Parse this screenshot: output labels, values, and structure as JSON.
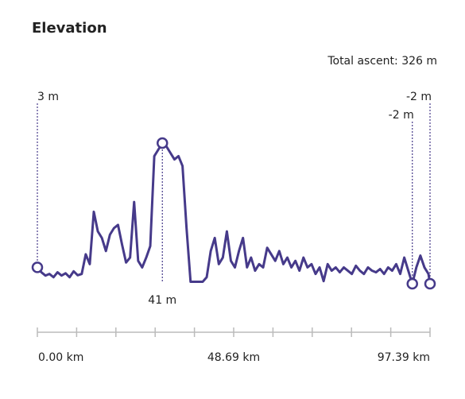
{
  "chart_data": {
    "type": "line",
    "title": "Elevation",
    "subtitle": "Total ascent: 326 m",
    "color": "#463a8a",
    "x": [
      0,
      1,
      2,
      3,
      4,
      5,
      6,
      7,
      8,
      9,
      10,
      11,
      12,
      13,
      14,
      15,
      16,
      17,
      18,
      19,
      20,
      21,
      22,
      23,
      24,
      25,
      26,
      27,
      28,
      29,
      30,
      31,
      32,
      33,
      34,
      35,
      36,
      37,
      38,
      39,
      40,
      41,
      42,
      43,
      44,
      45,
      46,
      47,
      48,
      49,
      50,
      51,
      52,
      53,
      54,
      55,
      56,
      57,
      58,
      59,
      60,
      61,
      62,
      63,
      64,
      65,
      66,
      67,
      68,
      69,
      70,
      71,
      72,
      73,
      74,
      75,
      76,
      77,
      78,
      79,
      80,
      81,
      82,
      83,
      84,
      85,
      86,
      87,
      88,
      89,
      90,
      91,
      92,
      93,
      94,
      95,
      96,
      97,
      97.39
    ],
    "values": [
      3,
      1.5,
      0.5,
      1,
      0,
      1.5,
      0.5,
      1.2,
      0,
      1.8,
      0.6,
      1,
      7,
      4,
      20,
      14,
      12,
      8,
      13,
      15,
      16,
      10,
      4.5,
      6,
      23,
      5,
      3,
      6,
      9.5,
      37,
      39,
      41,
      40,
      38,
      36,
      37,
      34,
      15,
      -1.4,
      -1.4,
      -1.4,
      -1.4,
      0,
      8,
      12,
      4,
      6,
      14,
      5,
      3,
      8,
      12,
      3,
      6,
      2,
      4,
      3,
      9,
      7,
      5,
      8,
      4,
      6,
      3,
      5,
      2,
      6,
      3,
      4,
      1,
      3,
      -1.2,
      4,
      2,
      3,
      1.5,
      3,
      2,
      1,
      3.5,
      2,
      1,
      3,
      2,
      1.5,
      2.5,
      1,
      3,
      2,
      4,
      1,
      6,
      2,
      -2,
      3,
      6.6,
      3,
      1,
      -2
    ],
    "xlim": [
      0,
      97.39
    ],
    "ylim": [
      -2,
      41
    ],
    "xticks": [
      {
        "value": 0,
        "label": "0.00 km"
      },
      {
        "value": 48.69,
        "label": "48.69 km"
      },
      {
        "value": 97.39,
        "label": "97.39 km"
      }
    ],
    "xminorticks": [
      9.739,
      19.478,
      29.217,
      38.956,
      58.434,
      68.173,
      77.912,
      87.651
    ],
    "markers": [
      {
        "x": 0,
        "y": 3,
        "label": "3 m"
      },
      {
        "x": 31,
        "y": 41,
        "label": "41 m"
      },
      {
        "x": 93,
        "y": -2,
        "label": "-2 m"
      },
      {
        "x": 97.39,
        "y": -2,
        "label": "-2 m"
      }
    ]
  }
}
